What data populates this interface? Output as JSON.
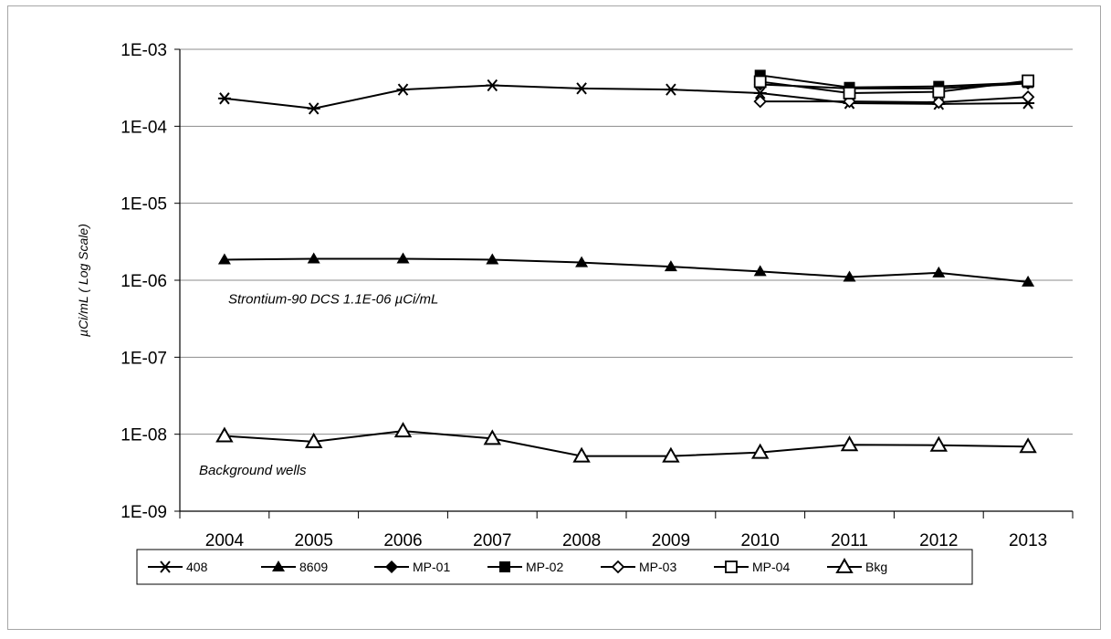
{
  "chart_data": {
    "type": "line",
    "title": "",
    "xlabel": "",
    "ylabel": "µCi/mL  ( Log Scale)",
    "yscale": "log",
    "ylim": [
      1e-09,
      0.001
    ],
    "y_ticks": [
      "1E-09",
      "1E-08",
      "1E-07",
      "1E-06",
      "1E-05",
      "1E-04",
      "1E-03"
    ],
    "x": [
      "2004",
      "2005",
      "2006",
      "2007",
      "2008",
      "2009",
      "2010",
      "2011",
      "2012",
      "2013"
    ],
    "grid": "horizontal",
    "legend_position": "bottom",
    "series": [
      {
        "name": "408",
        "marker": "asterisk",
        "values": [
          0.00023,
          0.00017,
          0.0003,
          0.00034,
          0.00031,
          0.0003,
          0.00027,
          0.0002,
          0.000195,
          0.0002
        ]
      },
      {
        "name": "8609",
        "marker": "triangle-filled",
        "values": [
          1.85e-06,
          1.9e-06,
          1.9e-06,
          1.85e-06,
          1.7e-06,
          1.5e-06,
          1.3e-06,
          1.1e-06,
          1.25e-06,
          9.5e-07
        ]
      },
      {
        "name": "MP-01",
        "marker": "diamond-filled",
        "values": [
          null,
          null,
          null,
          null,
          null,
          null,
          0.00035,
          0.00031,
          0.00031,
          0.00036
        ]
      },
      {
        "name": "MP-02",
        "marker": "square-filled",
        "values": [
          null,
          null,
          null,
          null,
          null,
          null,
          0.00046,
          0.00032,
          0.00033,
          0.00037
        ]
      },
      {
        "name": "MP-03",
        "marker": "diamond-open",
        "values": [
          null,
          null,
          null,
          null,
          null,
          null,
          0.00021,
          0.00021,
          0.000205,
          0.00024
        ]
      },
      {
        "name": "MP-04",
        "marker": "square-open",
        "values": [
          null,
          null,
          null,
          null,
          null,
          null,
          0.00038,
          0.00027,
          0.00028,
          0.00039
        ]
      },
      {
        "name": "Bkg",
        "marker": "triangle-open",
        "values": [
          9.5e-09,
          8e-09,
          1.1e-08,
          8.8e-09,
          5.2e-09,
          5.2e-09,
          5.8e-09,
          7.3e-09,
          7.2e-09,
          6.9e-09
        ]
      }
    ],
    "annotations": [
      {
        "text": "Strontium-90  DCS 1.1E-06  µCi/mL",
        "x": "2004",
        "y": 5e-07
      },
      {
        "text": "Background wells",
        "x": "2004",
        "y": 3e-09
      }
    ]
  }
}
